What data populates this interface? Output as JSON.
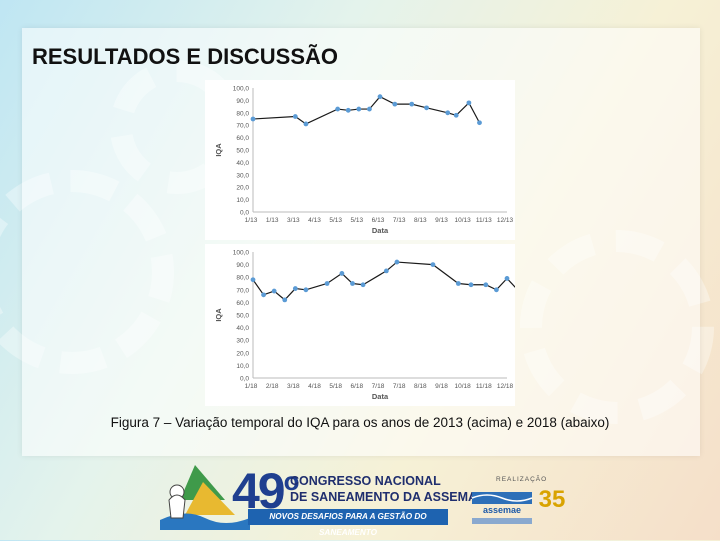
{
  "slide": {
    "title": "RESULTADOS E DISCUSSÃO",
    "caption": "Figura 7 – Variação temporal do IQA para os anos de 2013 (acima) e 2018 (abaixo)"
  },
  "footer": {
    "event_number": "49",
    "event_ordinal": "o",
    "congress_line1": "CONGRESSO NACIONAL",
    "congress_line2": "DE SANEAMENTO DA ASSEMAE",
    "tagline": "NOVOS DESAFIOS PARA A GESTÃO DO SANEAMENTO",
    "realizacao": "REALIZAÇÃO",
    "assemae": "assemae",
    "anos": "35"
  },
  "chart_data": [
    {
      "type": "line",
      "xlabel": "Data",
      "ylabel": "IQA",
      "ylim": [
        0,
        100
      ],
      "yticks": [
        "0,0",
        "10,0",
        "20,0",
        "30,0",
        "40,0",
        "50,0",
        "60,0",
        "70,0",
        "80,0",
        "90,0",
        "100,0"
      ],
      "xticks": [
        "1/13",
        "1/13",
        "3/13",
        "4/13",
        "5/13",
        "5/13",
        "6/13",
        "7/13",
        "8/13",
        "9/13",
        "10/13",
        "11/13",
        "12/13"
      ],
      "xrange": [
        0,
        12
      ],
      "grid": false,
      "color": "#5b9bd5",
      "points": [
        {
          "x": 0.0,
          "y": 75
        },
        {
          "x": 2.0,
          "y": 77
        },
        {
          "x": 2.5,
          "y": 71
        },
        {
          "x": 4.0,
          "y": 83
        },
        {
          "x": 4.5,
          "y": 82
        },
        {
          "x": 5.0,
          "y": 83
        },
        {
          "x": 5.5,
          "y": 83
        },
        {
          "x": 6.0,
          "y": 93
        },
        {
          "x": 6.7,
          "y": 87
        },
        {
          "x": 7.5,
          "y": 87
        },
        {
          "x": 8.2,
          "y": 84
        },
        {
          "x": 9.2,
          "y": 80
        },
        {
          "x": 9.6,
          "y": 78
        },
        {
          "x": 10.2,
          "y": 88
        },
        {
          "x": 10.7,
          "y": 72
        }
      ]
    },
    {
      "type": "line",
      "xlabel": "Data",
      "ylabel": "IQA",
      "ylim": [
        0,
        100
      ],
      "yticks": [
        "0,0",
        "10,0",
        "20,0",
        "30,0",
        "40,0",
        "50,0",
        "60,0",
        "70,0",
        "80,0",
        "90,0",
        "100,0"
      ],
      "xticks": [
        "1/18",
        "2/18",
        "3/18",
        "4/18",
        "5/18",
        "6/18",
        "7/18",
        "7/18",
        "8/18",
        "9/18",
        "10/18",
        "11/18",
        "12/18"
      ],
      "xrange": [
        0,
        12
      ],
      "grid": false,
      "color": "#5b9bd5",
      "points": [
        {
          "x": 0.0,
          "y": 78
        },
        {
          "x": 0.5,
          "y": 66
        },
        {
          "x": 1.0,
          "y": 69
        },
        {
          "x": 1.5,
          "y": 62
        },
        {
          "x": 2.0,
          "y": 71
        },
        {
          "x": 2.5,
          "y": 70
        },
        {
          "x": 3.5,
          "y": 75
        },
        {
          "x": 4.2,
          "y": 83
        },
        {
          "x": 4.7,
          "y": 75
        },
        {
          "x": 5.2,
          "y": 74
        },
        {
          "x": 6.3,
          "y": 85
        },
        {
          "x": 6.8,
          "y": 92
        },
        {
          "x": 8.5,
          "y": 90
        },
        {
          "x": 9.7,
          "y": 75
        },
        {
          "x": 10.3,
          "y": 74
        },
        {
          "x": 11.0,
          "y": 74
        },
        {
          "x": 11.5,
          "y": 70
        },
        {
          "x": 12.0,
          "y": 79
        },
        {
          "x": 12.5,
          "y": 70
        }
      ]
    }
  ]
}
